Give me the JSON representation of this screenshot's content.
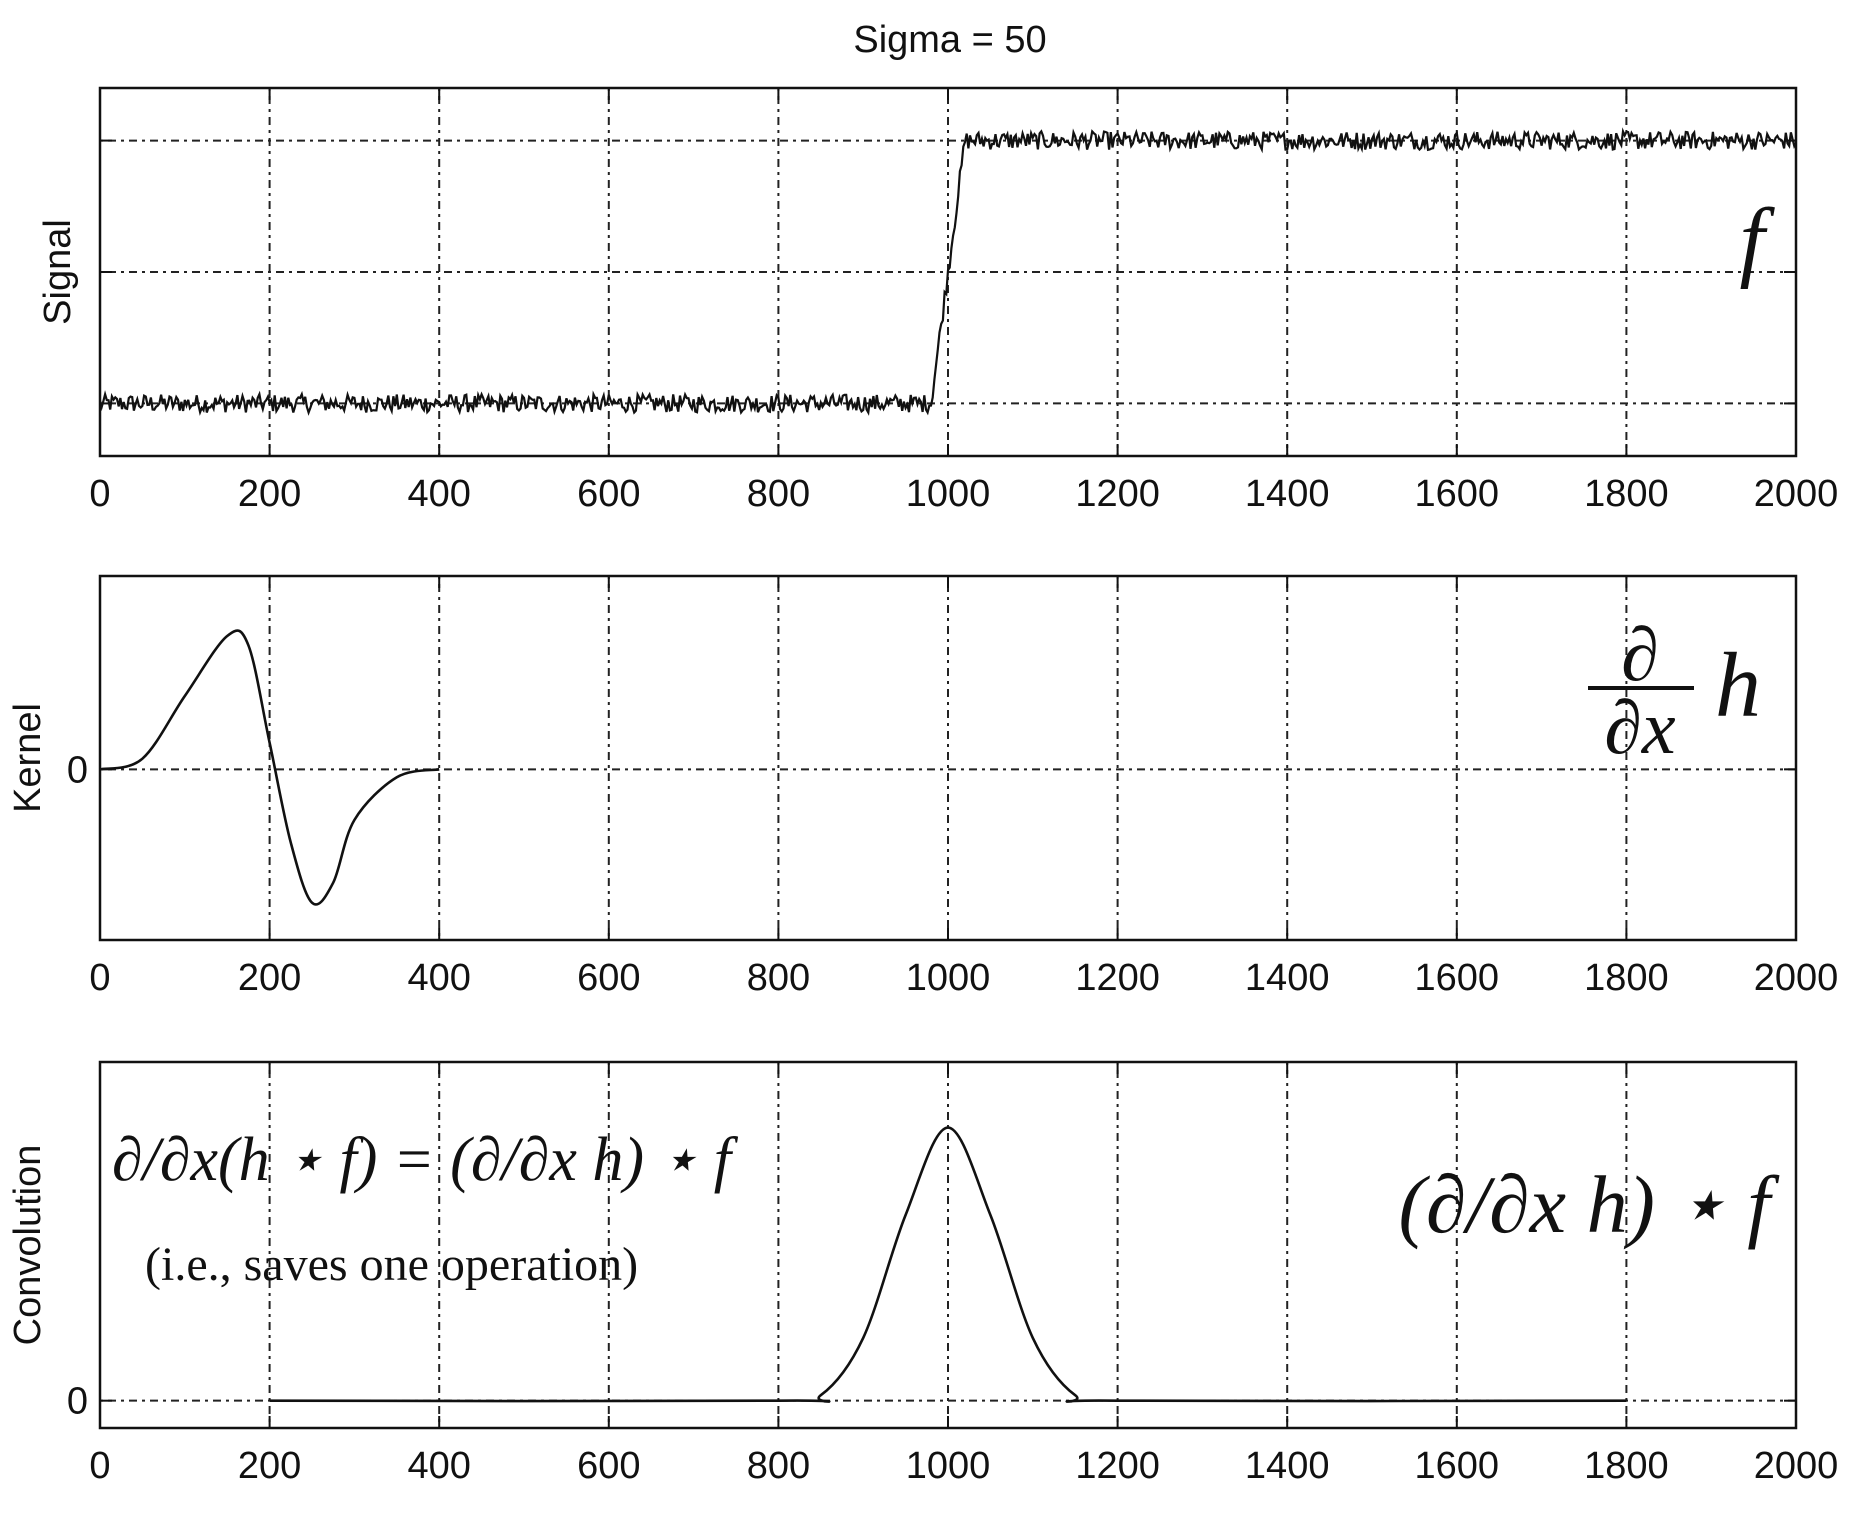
{
  "figure": {
    "title": "Sigma = 50"
  },
  "chart_data": [
    {
      "type": "line",
      "title": "Sigma = 50",
      "ylabel": "Signal",
      "xlim": [
        0,
        2000
      ],
      "xticks": [
        0,
        200,
        400,
        600,
        800,
        1000,
        1200,
        1400,
        1600,
        1800,
        2000
      ],
      "ytick_labels": [],
      "grid": true,
      "annotation": "f",
      "series": [
        {
          "points": [
            [
              0,
              0.0
            ],
            [
              980,
              0.0
            ],
            [
              1020,
              1.0
            ],
            [
              2000,
              1.0
            ]
          ],
          "noise_amplitude": 0.035
        }
      ]
    },
    {
      "type": "line",
      "ylabel": "Kernel",
      "xlim": [
        0,
        2000
      ],
      "xticks": [
        0,
        200,
        400,
        600,
        800,
        1000,
        1200,
        1400,
        1600,
        1800,
        2000
      ],
      "ytick_labels": [
        "0"
      ],
      "grid": true,
      "annotation": {
        "num": "∂",
        "den": "∂x",
        "tail": "h"
      },
      "series": [
        {
          "points": [
            [
              0,
              0.0
            ],
            [
              50,
              0.08
            ],
            [
              100,
              0.55
            ],
            [
              150,
              1.0
            ],
            [
              175,
              0.93
            ],
            [
              200,
              0.2
            ],
            [
              225,
              -0.55
            ],
            [
              250,
              -1.0
            ],
            [
              275,
              -0.85
            ],
            [
              300,
              -0.38
            ],
            [
              350,
              -0.06
            ],
            [
              400,
              0.0
            ]
          ]
        }
      ]
    },
    {
      "type": "line",
      "ylabel": "Convolution",
      "xlim": [
        0,
        2000
      ],
      "xticks": [
        0,
        200,
        400,
        600,
        800,
        1000,
        1200,
        1400,
        1600,
        1800,
        2000
      ],
      "ytick_labels": [
        "0"
      ],
      "grid": true,
      "annotation_left": "∂/∂x(h ⋆ f) = (∂/∂x h) ⋆ f",
      "annotation_left_note": "(i.e., saves one operation)",
      "annotation_right": "(∂/∂x h) ⋆ f",
      "series": [
        {
          "points": [
            [
              200,
              0.0
            ],
            [
              800,
              0.0
            ],
            [
              850,
              0.02
            ],
            [
              900,
              0.23
            ],
            [
              950,
              0.68
            ],
            [
              1000,
              1.0
            ],
            [
              1050,
              0.68
            ],
            [
              1100,
              0.23
            ],
            [
              1150,
              0.02
            ],
            [
              1200,
              0.0
            ],
            [
              1800,
              0.0
            ]
          ]
        }
      ]
    }
  ]
}
